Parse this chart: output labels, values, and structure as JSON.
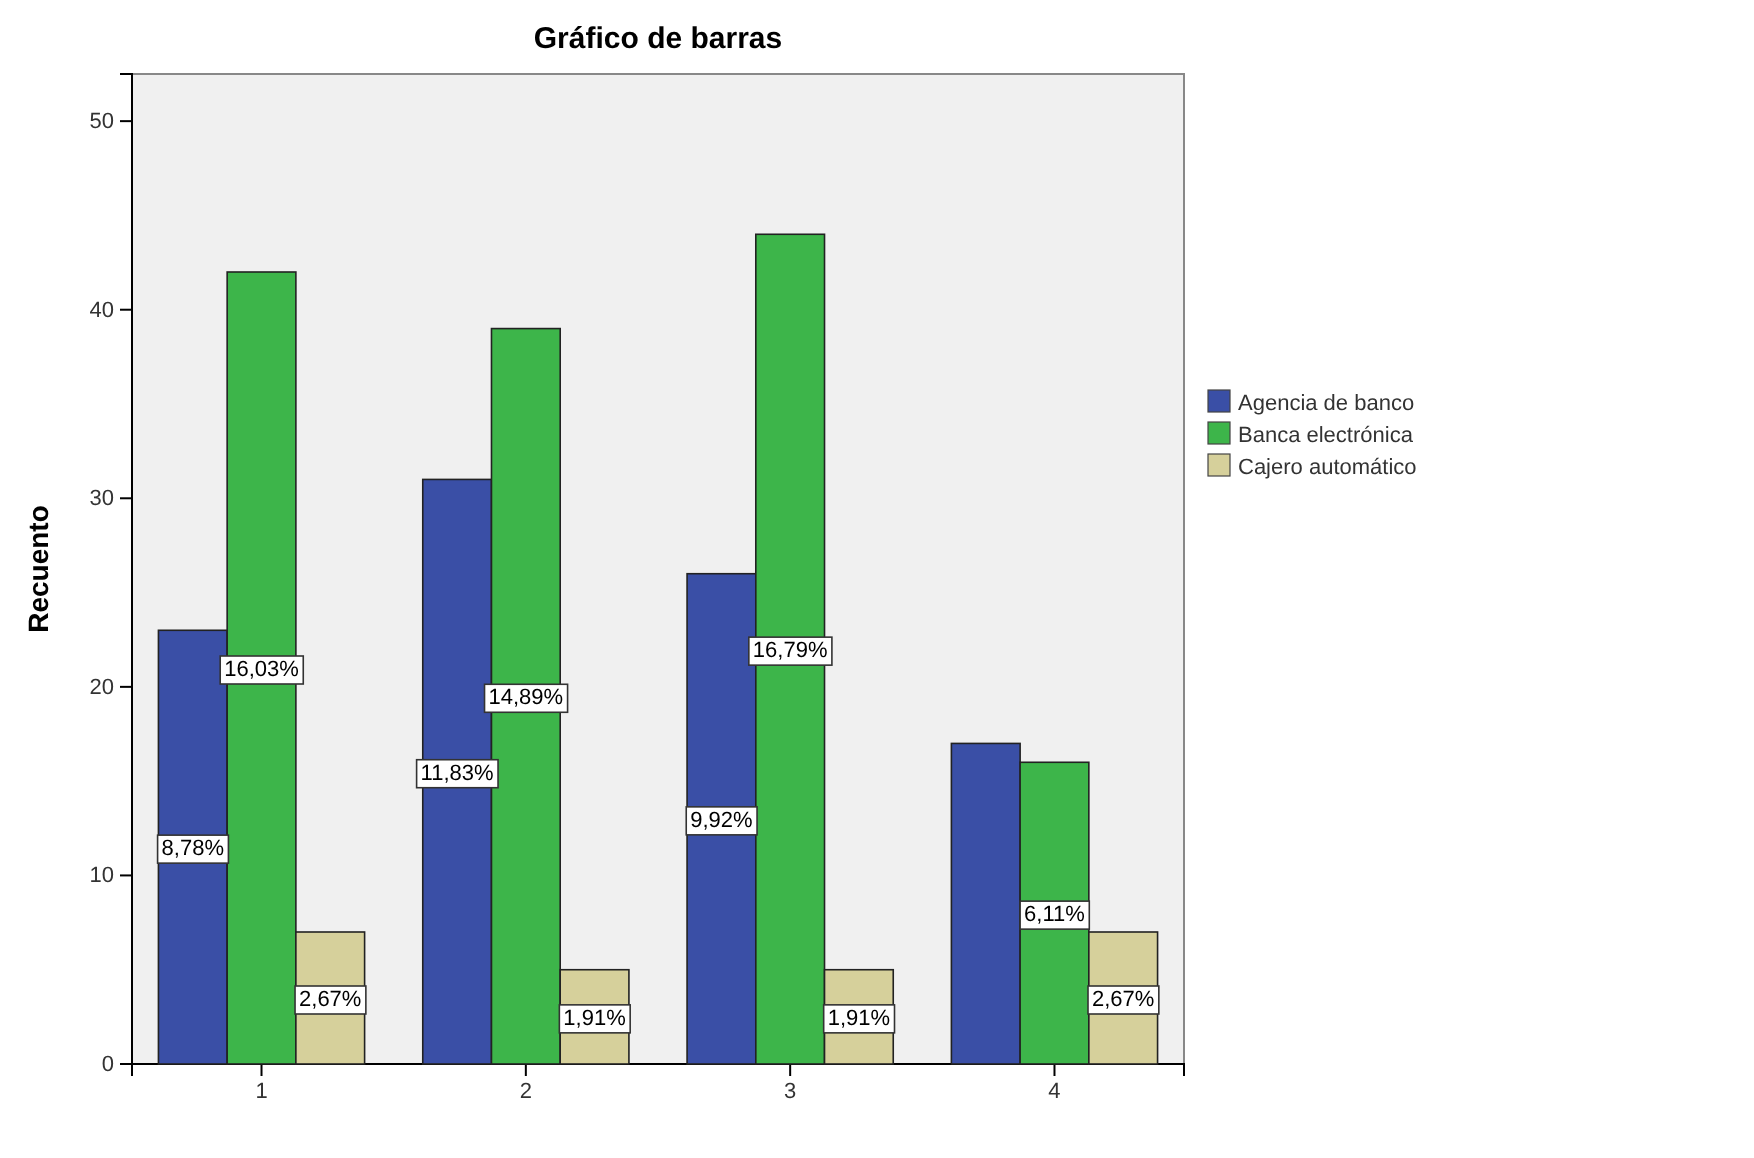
{
  "chart_data": {
    "type": "bar",
    "title": "Gráfico de barras",
    "ylabel": "Recuento",
    "categories": [
      "1",
      "2",
      "3",
      "4"
    ],
    "series": [
      {
        "name": "Agencia de banco",
        "color": "#3a4fa6",
        "values": [
          23,
          31,
          26,
          17
        ]
      },
      {
        "name": "Banca electrónica",
        "color": "#3db54a",
        "values": [
          42,
          39,
          44,
          16
        ]
      },
      {
        "name": "Cajero automático",
        "color": "#d6d09b",
        "values": [
          7,
          5,
          5,
          7
        ]
      }
    ],
    "annotations": [
      "8,78%",
      "16,03%",
      "2,67%",
      "11,83%",
      "14,89%",
      "1,91%",
      "9,92%",
      "16,79%",
      "1,91%",
      "6,11%",
      "2,67%"
    ],
    "ylim": [
      0,
      52.5
    ],
    "yticks": [
      0,
      10,
      20,
      30,
      40,
      50
    ],
    "grid": false,
    "legend": "right"
  }
}
